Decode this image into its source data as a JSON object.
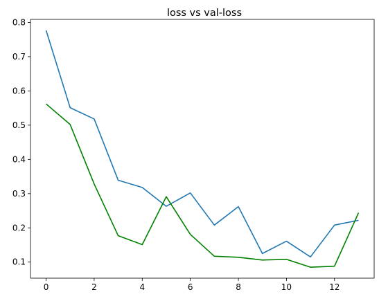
{
  "chart_data": {
    "type": "line",
    "title": "loss vs val-loss",
    "xlabel": "",
    "ylabel": "",
    "x": [
      0,
      1,
      2,
      3,
      4,
      5,
      6,
      7,
      8,
      9,
      10,
      11,
      12,
      13
    ],
    "xlim": [
      -0.65,
      13.65
    ],
    "ylim": [
      0.053,
      0.809
    ],
    "xticks": [
      0,
      2,
      4,
      6,
      8,
      10,
      12
    ],
    "yticks": [
      0.1,
      0.2,
      0.3,
      0.4,
      0.5,
      0.6,
      0.7,
      0.8
    ],
    "grid": false,
    "series": [
      {
        "color": "#1f77b4",
        "values": [
          0.777,
          0.551,
          0.518,
          0.339,
          0.318,
          0.263,
          0.302,
          0.208,
          0.262,
          0.125,
          0.161,
          0.115,
          0.208,
          0.222
        ]
      },
      {
        "color": "#008000",
        "values": [
          0.562,
          0.502,
          0.328,
          0.177,
          0.151,
          0.291,
          0.181,
          0.117,
          0.114,
          0.106,
          0.108,
          0.085,
          0.088,
          0.244
        ]
      }
    ]
  }
}
